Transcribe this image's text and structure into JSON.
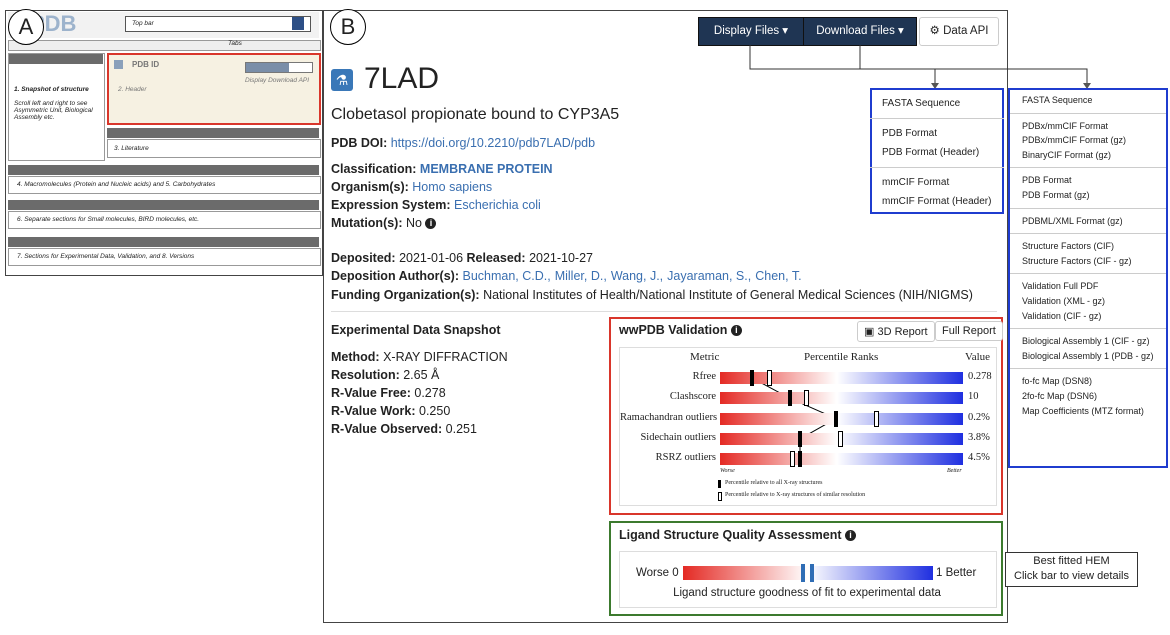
{
  "panel_a": {
    "label": "A",
    "top_bar": "Top bar",
    "tabs": "Tabs",
    "logo": "PDB",
    "pdb_id": "PDB ID",
    "header": "2. Header",
    "buttons": "Display  Download  API",
    "snapshot_title": "1. Snapshot of structure",
    "snapshot_text": "Scroll left and right to see Asymmetric Unit, Biological Assembly etc.",
    "literature": "3. Literature",
    "sections": [
      "4. Macromolecules (Protein and Nucleic acids) and 5. Carbohydrates",
      "6. Separate sections for Small molecules, BIRD molecules, etc.",
      "7. Sections for Experimental Data, Validation, and 8. Versions"
    ]
  },
  "panel_b": {
    "label": "B",
    "buttons": [
      "Display Files",
      "Download Files",
      "Data API"
    ],
    "id": "7LAD",
    "title": "Clobetasol propionate bound to CYP3A5",
    "doi_label": "PDB DOI:",
    "doi": "https://doi.org/10.2210/pdb7LAD/pdb",
    "info": [
      {
        "label": "Classification:",
        "value": "MEMBRANE PROTEIN"
      },
      {
        "label": "Organism(s):",
        "value": "Homo sapiens"
      },
      {
        "label": "Expression System:",
        "value": "Escherichia coli"
      },
      {
        "label": "Mutation(s):",
        "value": "No"
      }
    ],
    "deposited": {
      "label": "Deposited:",
      "value": "2021-01-06"
    },
    "released": {
      "label": "Released:",
      "value": "2021-10-27"
    },
    "authors_label": "Deposition Author(s):",
    "authors": [
      "Buchman, C.D.,",
      "Miller, D.,",
      "Wang, J.,",
      "Jayaraman, S.,",
      "Chen, T."
    ],
    "funding": {
      "label": "Funding Organization(s):",
      "value": "National Institutes of Health/National Institute of General Medical Sciences (NIH/NIGMS)"
    },
    "experimental": {
      "title": "Experimental Data Snapshot",
      "items": [
        {
          "label": "Method:",
          "value": "X-RAY DIFFRACTION"
        },
        {
          "label": "Resolution:",
          "value": "2.65 Å"
        },
        {
          "label": "R-Value Free:",
          "value": "0.278"
        },
        {
          "label": "R-Value Work:",
          "value": "0.250"
        },
        {
          "label": "R-Value Observed:",
          "value": "0.251"
        }
      ]
    },
    "validation": {
      "title": "wwPDB Validation",
      "buttons": [
        "3D Report",
        "Full Report"
      ],
      "headers": [
        "Metric",
        "Percentile Ranks",
        "Value"
      ],
      "rows": [
        {
          "metric": "Rfree",
          "value": "0.278"
        },
        {
          "metric": "Clashscore",
          "value": "10"
        },
        {
          "metric": "Ramachandran outliers",
          "value": "0.2%"
        },
        {
          "metric": "Sidechain outliers",
          "value": "3.8%"
        },
        {
          "metric": "RSRZ outliers",
          "value": "4.5%"
        }
      ],
      "worse": "Worse",
      "better": "Better",
      "legend": [
        "Percentile relative to all X-ray structures",
        "Percentile relative to X-ray structures of similar resolution"
      ]
    },
    "ligand": {
      "title": "Ligand Structure Quality Assessment",
      "left": "Worse 0",
      "right": "1 Better",
      "caption": "Ligand structure goodness of fit to experimental data",
      "tooltip": [
        "Best fitted HEM",
        "Click bar to view details"
      ]
    },
    "display_menu": [
      [
        "FASTA Sequence"
      ],
      [
        "PDB Format",
        "PDB Format (Header)"
      ],
      [
        "mmCIF Format",
        "mmCIF Format (Header)"
      ]
    ],
    "download_menu": [
      [
        "FASTA Sequence"
      ],
      [
        "PDBx/mmCIF Format",
        "PDBx/mmCIF Format (gz)",
        "BinaryCIF Format (gz)"
      ],
      [
        "PDB Format",
        "PDB Format (gz)"
      ],
      [
        "PDBML/XML Format (gz)"
      ],
      [
        "Structure Factors (CIF)",
        "Structure Factors (CIF - gz)"
      ],
      [
        "Validation Full PDF",
        "Validation (XML - gz)",
        "Validation (CIF - gz)"
      ],
      [
        "Biological Assembly 1 (CIF - gz)",
        "Biological Assembly 1 (PDB - gz)"
      ],
      [
        "fo-fc Map (DSN8)",
        "2fo-fc Map (DSN6)",
        "Map Coefficients (MTZ format)"
      ]
    ]
  }
}
